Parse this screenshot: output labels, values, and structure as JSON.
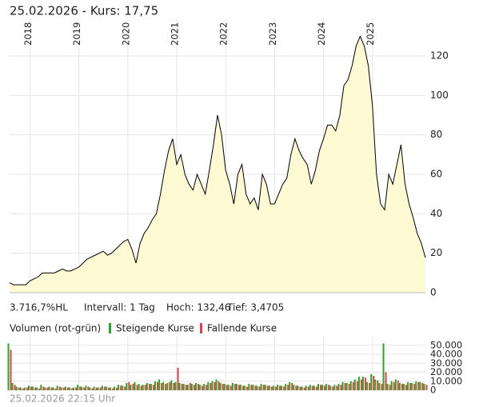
{
  "chart_data": {
    "type": "area",
    "title": "25.02.2026  -  Kurs: 17,75",
    "stats": [
      "3.716,7%HL",
      "Intervall: 1 Tag",
      "Hoch: 132,46",
      "Tief: 3,4705"
    ],
    "timestamp": "25.02.2026 22:15 Uhr",
    "categories": [
      null,
      null,
      null,
      null,
      null,
      "2018",
      null,
      null,
      null,
      null,
      null,
      null,
      null,
      null,
      null,
      null,
      null,
      "2019",
      null,
      null,
      null,
      null,
      null,
      null,
      null,
      null,
      null,
      null,
      null,
      "2020",
      null,
      null,
      null,
      null,
      null,
      null,
      null,
      null,
      null,
      null,
      null,
      "2021",
      null,
      null,
      null,
      null,
      null,
      null,
      null,
      null,
      null,
      null,
      null,
      "2022",
      null,
      null,
      null,
      null,
      null,
      null,
      null,
      null,
      null,
      null,
      null,
      "2023",
      null,
      null,
      null,
      null,
      null,
      null,
      null,
      null,
      null,
      null,
      null,
      "2024",
      null,
      null,
      null,
      null,
      null,
      null,
      null,
      null,
      null,
      null,
      null,
      "2025",
      null,
      null,
      null,
      null,
      null,
      null,
      null,
      null,
      null,
      null,
      null,
      null,
      null
    ],
    "series": [
      {
        "name": "Kurs",
        "color": "#000000",
        "fill": "#fdf9d3",
        "values": [
          5,
          4,
          4,
          4,
          4,
          6,
          7,
          8,
          10,
          10,
          10,
          10,
          11,
          12,
          11,
          11,
          12,
          13,
          15,
          17,
          18,
          19,
          20,
          21,
          19,
          20,
          22,
          24,
          26,
          27,
          22,
          15,
          25,
          30,
          33,
          37,
          40,
          50,
          62,
          72,
          78,
          65,
          70,
          60,
          55,
          52,
          60,
          55,
          50,
          62,
          75,
          90,
          80,
          62,
          55,
          45,
          60,
          65,
          50,
          45,
          48,
          42,
          60,
          55,
          45,
          45,
          50,
          55,
          58,
          70,
          78,
          72,
          68,
          65,
          55,
          62,
          72,
          78,
          85,
          85,
          82,
          90,
          105,
          108,
          115,
          125,
          130,
          125,
          115,
          95,
          60,
          45,
          42,
          60,
          55,
          65,
          75,
          55,
          45,
          38,
          30,
          25,
          17.75
        ]
      }
    ],
    "ylim": [
      0,
      135
    ],
    "yticks": [
      0,
      20,
      40,
      60,
      80,
      100,
      120
    ],
    "grid": true,
    "volume": {
      "title": "Volumen (rot-grün)",
      "ylim": [
        0,
        56000
      ],
      "yticks": [
        0,
        {
          "value": 10000,
          "label": "10.000"
        },
        {
          "value": 20000,
          "label": "20.000"
        },
        {
          "value": 30000,
          "label": "30.000"
        },
        {
          "value": 40000,
          "label": "40.000"
        },
        {
          "value": 50000,
          "label": "50.000"
        }
      ],
      "series": [
        {
          "name": "Steigende Kurse",
          "color": "#22aa22",
          "values": [
            52000,
            8000,
            4000,
            3000,
            3000,
            5000,
            4000,
            3000,
            6000,
            3000,
            4000,
            3000,
            5000,
            3000,
            4000,
            3000,
            3000,
            6000,
            4000,
            5000,
            3000,
            4000,
            3000,
            5000,
            4000,
            3000,
            4000,
            6000,
            5000,
            8000,
            6000,
            9000,
            7000,
            6000,
            8000,
            7000,
            10000,
            12000,
            9000,
            8000,
            11000,
            9000,
            8000,
            7000,
            6000,
            7000,
            8000,
            6000,
            7000,
            9000,
            10000,
            12000,
            8000,
            7000,
            6000,
            8000,
            7000,
            6000,
            5000,
            7000,
            6000,
            5000,
            7000,
            6000,
            5000,
            5000,
            6000,
            5000,
            7000,
            9000,
            6000,
            5000,
            4000,
            5000,
            6000,
            5000,
            7000,
            6000,
            7000,
            5000,
            6000,
            7000,
            9000,
            8000,
            10000,
            12000,
            15000,
            15000,
            9000,
            18000,
            12000,
            8000,
            52000,
            7000,
            10000,
            12000,
            8000,
            7000,
            9000,
            8000,
            10000,
            9000,
            7000
          ]
        },
        {
          "name": "Fallende Kurse",
          "color": "#e0404a",
          "values": [
            45000,
            6000,
            3000,
            2000,
            3000,
            4000,
            3000,
            2000,
            4000,
            3000,
            3000,
            2000,
            4000,
            3000,
            3000,
            2000,
            3000,
            4000,
            3000,
            4000,
            2000,
            3000,
            3000,
            4000,
            3000,
            2000,
            3000,
            5000,
            4000,
            9000,
            7000,
            6000,
            5000,
            6000,
            7000,
            6000,
            9000,
            8000,
            7000,
            9000,
            8000,
            25000,
            7000,
            6000,
            8000,
            6000,
            7000,
            5000,
            6000,
            8000,
            9000,
            10000,
            7000,
            6000,
            5000,
            7000,
            6000,
            5000,
            4000,
            6000,
            5000,
            4000,
            6000,
            5000,
            4000,
            4000,
            5000,
            4000,
            6000,
            8000,
            5000,
            4000,
            3000,
            4000,
            5000,
            4000,
            6000,
            5000,
            6000,
            4000,
            5000,
            6000,
            8000,
            7000,
            9000,
            10000,
            12000,
            14000,
            8000,
            16000,
            11000,
            7000,
            20000,
            6000,
            9000,
            11000,
            7000,
            6000,
            8000,
            7000,
            9000,
            8000,
            6000
          ]
        }
      ]
    }
  }
}
